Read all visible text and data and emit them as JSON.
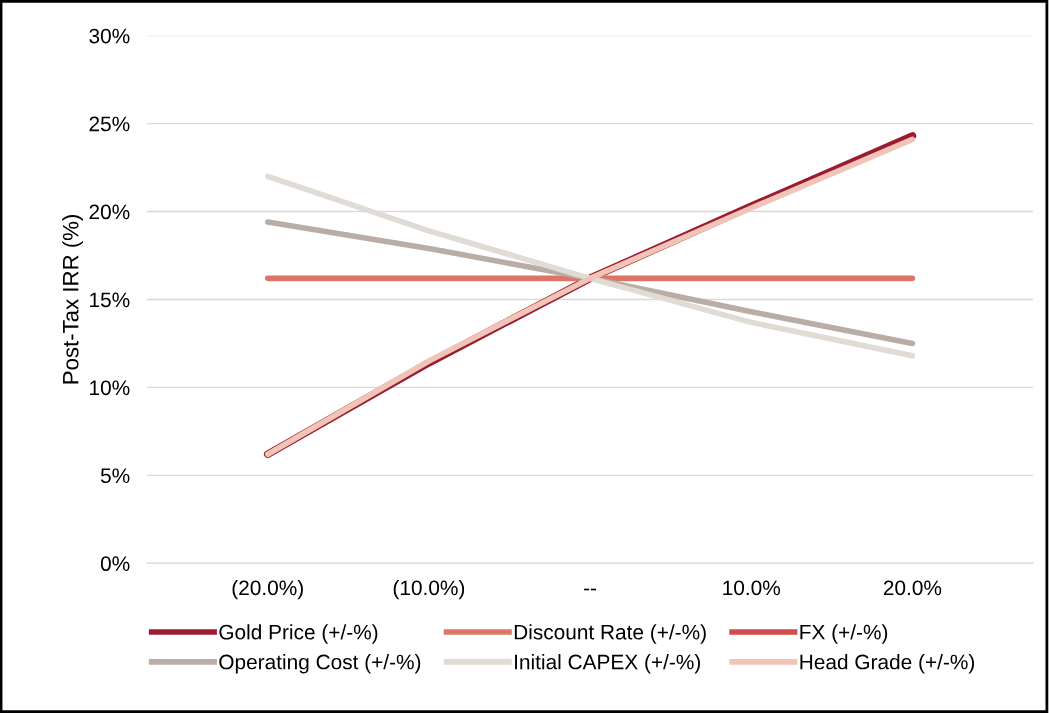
{
  "chart_data": {
    "type": "line",
    "ylabel": "Post-Tax IRR (%)",
    "categories": [
      "(20.0%)",
      "(10.0%)",
      "--",
      "10.0%",
      "20.0%"
    ],
    "series": [
      {
        "name": "Gold Price (+/-%)",
        "color": "#9b1b30",
        "values": [
          6.2,
          11.4,
          16.2,
          20.3,
          24.3
        ]
      },
      {
        "name": "Discount Rate (+/-%)",
        "color": "#dc7567",
        "values": [
          16.2,
          16.2,
          16.2,
          16.2,
          16.2
        ]
      },
      {
        "name": "FX (+/-%)",
        "color": "#d04d4d",
        "values": [
          null,
          null,
          null,
          null,
          null
        ]
      },
      {
        "name": "Operating Cost (+/-%)",
        "color": "#b9ada5",
        "values": [
          19.4,
          17.9,
          16.2,
          14.3,
          12.5
        ]
      },
      {
        "name": "Initial CAPEX (+/-%)",
        "color": "#e0dbd5",
        "values": [
          22.0,
          18.9,
          16.2,
          13.7,
          11.8
        ]
      },
      {
        "name": "Head Grade (+/-%)",
        "color": "#f1c4b8",
        "values": [
          6.2,
          11.5,
          16.2,
          20.2,
          24.1
        ]
      }
    ],
    "ylim": [
      0,
      30
    ],
    "yticks": [
      {
        "value": 0,
        "label": "0%"
      },
      {
        "value": 5,
        "label": "5%"
      },
      {
        "value": 10,
        "label": "10%"
      },
      {
        "value": 15,
        "label": "15%"
      },
      {
        "value": 20,
        "label": "20%"
      },
      {
        "value": 25,
        "label": "25%"
      },
      {
        "value": 30,
        "label": "30%"
      }
    ],
    "grid": "y",
    "legend": "bottom",
    "marker": "none",
    "line_style": "solid"
  }
}
